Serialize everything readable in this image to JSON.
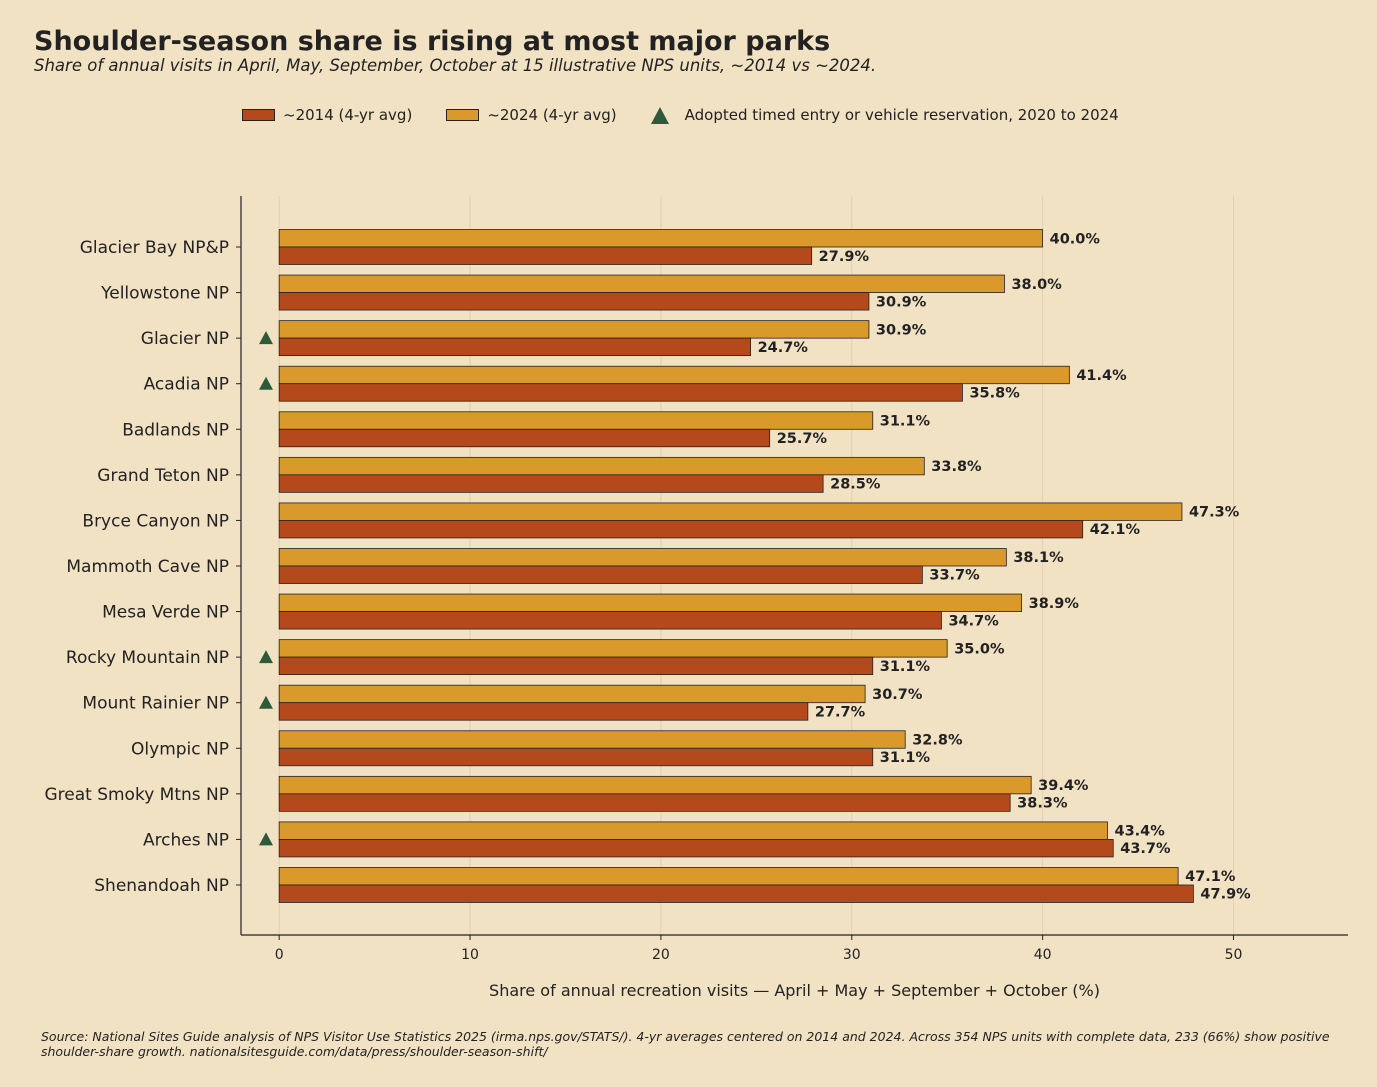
{
  "title": "Shoulder-season share is rising at most major parks",
  "subtitle": "Share of annual visits in April, May, September, October at 15 illustrative NPS units, ~2014 vs ~2024.",
  "legend": {
    "item_2014": "~2014 (4-yr avg)",
    "item_2024": "~2024 (4-yr avg)",
    "item_timed": "Adopted timed entry or vehicle reservation, 2020 to 2024"
  },
  "source": "Source: National Sites Guide analysis of NPS Visitor Use Statistics 2025 (irma.nps.gov/STATS/).  4-yr averages centered on 2014 and 2024.  Across 354 NPS units with complete data, 233 (66%) show positive shoulder-share growth.  nationalsitesguide.com/data/press/shoulder-season-shift/",
  "colors": {
    "series_2014": "#b44a1c",
    "series_2024": "#d99a2b",
    "marker": "#2e5a3a",
    "background": "#f2e2c4",
    "grid": "#e2d0ae"
  },
  "chart_data": {
    "type": "bar",
    "orientation": "horizontal",
    "categories": [
      "Glacier Bay NP&P",
      "Yellowstone NP",
      "Glacier NP",
      "Acadia NP",
      "Badlands NP",
      "Grand Teton NP",
      "Bryce Canyon NP",
      "Mammoth Cave NP",
      "Mesa Verde NP",
      "Rocky Mountain NP",
      "Mount Rainier NP",
      "Olympic NP",
      "Great Smoky Mtns NP",
      "Arches NP",
      "Shenandoah NP"
    ],
    "series": [
      {
        "name": "~2014 (4-yr avg)",
        "values": [
          27.9,
          30.9,
          24.7,
          35.8,
          25.7,
          28.5,
          42.1,
          33.7,
          34.7,
          31.1,
          27.7,
          31.1,
          38.3,
          43.7,
          47.9
        ]
      },
      {
        "name": "~2024 (4-yr avg)",
        "values": [
          40.0,
          38.0,
          30.9,
          41.4,
          31.1,
          33.8,
          47.3,
          38.1,
          38.9,
          35.0,
          30.7,
          32.8,
          39.4,
          43.4,
          47.1
        ]
      }
    ],
    "value_labels_2014": [
      "27.9%",
      "30.9%",
      "24.7%",
      "35.8%",
      "25.7%",
      "28.5%",
      "42.1%",
      "33.7%",
      "34.7%",
      "31.1%",
      "27.7%",
      "31.1%",
      "38.3%",
      "43.7%",
      "47.9%"
    ],
    "value_labels_2024": [
      "40.0%",
      "38.0%",
      "30.9%",
      "41.4%",
      "31.1%",
      "33.8%",
      "47.3%",
      "38.1%",
      "38.9%",
      "35.0%",
      "30.7%",
      "32.8%",
      "39.4%",
      "43.4%",
      "47.1%"
    ],
    "timed_entry": [
      false,
      false,
      true,
      true,
      false,
      false,
      false,
      false,
      false,
      true,
      true,
      false,
      false,
      true,
      false
    ],
    "xlabel": "Share of annual recreation visits — April + May + September + October (%)",
    "ylabel": "",
    "xlim": [
      -2,
      56
    ],
    "xticks": [
      0,
      10,
      20,
      30,
      40,
      50
    ],
    "xtick_labels": [
      "0",
      "10",
      "20",
      "30",
      "40",
      "50"
    ],
    "grid": "vertical",
    "legend_position": "top"
  }
}
